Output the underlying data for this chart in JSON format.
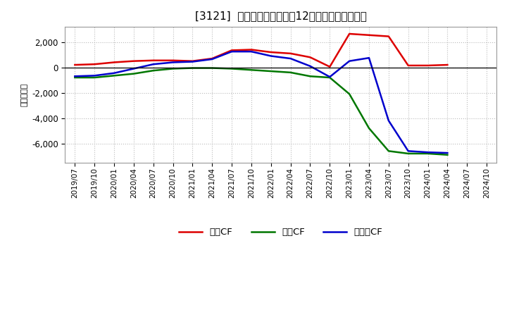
{
  "title": "[3121]  キャッシュフローの12か月移動合計の推移",
  "ylabel": "（百万円）",
  "background_color": "#ffffff",
  "plot_bg_color": "#ffffff",
  "grid_color": "#bbbbbb",
  "x_labels": [
    "2019/07",
    "2019/10",
    "2020/01",
    "2020/04",
    "2020/07",
    "2020/10",
    "2021/01",
    "2021/04",
    "2021/07",
    "2021/10",
    "2022/01",
    "2022/04",
    "2022/07",
    "2022/10",
    "2023/01",
    "2023/04",
    "2023/07",
    "2023/10",
    "2024/01",
    "2024/04",
    "2024/07",
    "2024/10"
  ],
  "operating_cf": [
    200,
    250,
    400,
    500,
    550,
    550,
    500,
    700,
    1350,
    1400,
    1200,
    1100,
    800,
    50,
    2650,
    2550,
    2450,
    150,
    150,
    200,
    null,
    null
  ],
  "investing_cf": [
    -800,
    -800,
    -650,
    -500,
    -250,
    -100,
    -50,
    -50,
    -100,
    -200,
    -300,
    -400,
    -700,
    -800,
    -2100,
    -4800,
    -6600,
    -6800,
    -6800,
    -6900,
    null,
    null
  ],
  "free_cf": [
    -700,
    -650,
    -450,
    -100,
    250,
    400,
    450,
    650,
    1250,
    1250,
    900,
    700,
    100,
    -750,
    500,
    750,
    -4200,
    -6600,
    -6700,
    -6750,
    null,
    null
  ],
  "operating_color": "#dd0000",
  "investing_color": "#007700",
  "free_color": "#0000cc",
  "ylim": [
    -7500,
    3200
  ],
  "yticks": [
    -6000,
    -4000,
    -2000,
    0,
    2000
  ],
  "legend_labels": [
    "営業CF",
    "投資CF",
    "フリーCF"
  ]
}
